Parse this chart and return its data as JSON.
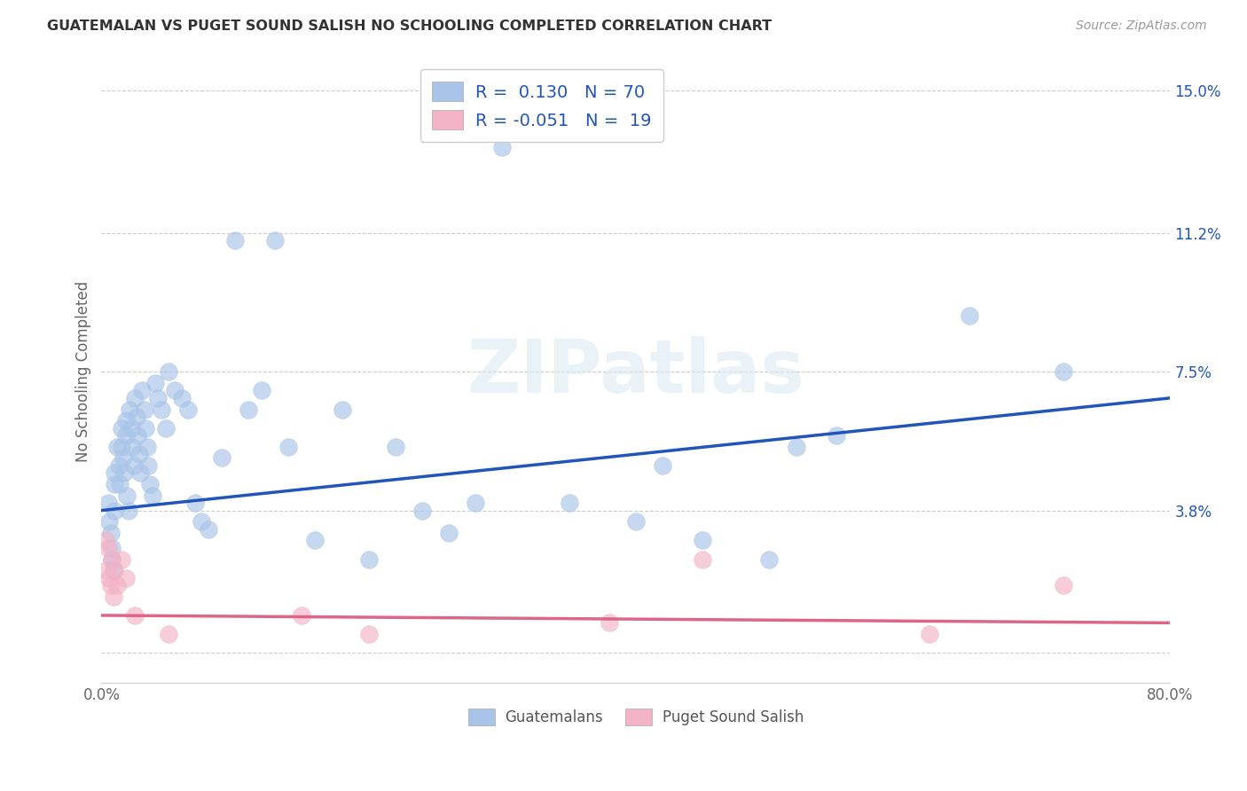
{
  "title": "GUATEMALAN VS PUGET SOUND SALISH NO SCHOOLING COMPLETED CORRELATION CHART",
  "source": "Source: ZipAtlas.com",
  "ylabel": "No Schooling Completed",
  "xlim": [
    0.0,
    0.8
  ],
  "ylim": [
    -0.008,
    0.158
  ],
  "yticks": [
    0.0,
    0.038,
    0.075,
    0.112,
    0.15
  ],
  "ytick_labels": [
    "",
    "3.8%",
    "7.5%",
    "11.2%",
    "15.0%"
  ],
  "xticks": [
    0.0,
    0.1,
    0.2,
    0.3,
    0.4,
    0.5,
    0.6,
    0.7,
    0.8
  ],
  "xtick_labels": [
    "0.0%",
    "",
    "",
    "",
    "",
    "",
    "",
    "",
    "80.0%"
  ],
  "guatemalan_color": "#a8c4e8",
  "puget_color": "#f2b3c6",
  "guatemalan_line_color": "#2255bb",
  "puget_line_color": "#dd6688",
  "legend_text_color": "#2255bb",
  "watermark": "ZIPatlas",
  "R_guatemalan": 0.13,
  "N_guatemalan": 70,
  "R_puget": -0.051,
  "N_puget": 19,
  "guatemalan_x": [
    0.005,
    0.006,
    0.007,
    0.008,
    0.008,
    0.009,
    0.01,
    0.01,
    0.01,
    0.012,
    0.013,
    0.014,
    0.015,
    0.015,
    0.016,
    0.017,
    0.018,
    0.018,
    0.019,
    0.02,
    0.021,
    0.022,
    0.023,
    0.024,
    0.025,
    0.026,
    0.027,
    0.028,
    0.029,
    0.03,
    0.032,
    0.033,
    0.034,
    0.035,
    0.036,
    0.038,
    0.04,
    0.042,
    0.045,
    0.048,
    0.05,
    0.055,
    0.06,
    0.065,
    0.07,
    0.075,
    0.08,
    0.09,
    0.1,
    0.11,
    0.12,
    0.13,
    0.14,
    0.16,
    0.18,
    0.2,
    0.22,
    0.24,
    0.26,
    0.28,
    0.3,
    0.35,
    0.4,
    0.42,
    0.45,
    0.5,
    0.52,
    0.55,
    0.65,
    0.72
  ],
  "guatemalan_y": [
    0.04,
    0.035,
    0.032,
    0.028,
    0.025,
    0.022,
    0.048,
    0.045,
    0.038,
    0.055,
    0.05,
    0.045,
    0.06,
    0.055,
    0.052,
    0.048,
    0.062,
    0.058,
    0.042,
    0.038,
    0.065,
    0.06,
    0.055,
    0.05,
    0.068,
    0.063,
    0.058,
    0.053,
    0.048,
    0.07,
    0.065,
    0.06,
    0.055,
    0.05,
    0.045,
    0.042,
    0.072,
    0.068,
    0.065,
    0.06,
    0.075,
    0.07,
    0.068,
    0.065,
    0.04,
    0.035,
    0.033,
    0.052,
    0.11,
    0.065,
    0.07,
    0.11,
    0.055,
    0.03,
    0.065,
    0.025,
    0.055,
    0.038,
    0.032,
    0.04,
    0.135,
    0.04,
    0.035,
    0.05,
    0.03,
    0.025,
    0.055,
    0.058,
    0.09,
    0.075
  ],
  "puget_x": [
    0.003,
    0.004,
    0.005,
    0.006,
    0.007,
    0.008,
    0.009,
    0.01,
    0.012,
    0.015,
    0.018,
    0.025,
    0.05,
    0.15,
    0.2,
    0.38,
    0.45,
    0.62,
    0.72
  ],
  "puget_y": [
    0.03,
    0.022,
    0.028,
    0.02,
    0.018,
    0.025,
    0.015,
    0.022,
    0.018,
    0.025,
    0.02,
    0.01,
    0.005,
    0.01,
    0.005,
    0.008,
    0.025,
    0.005,
    0.018
  ],
  "blue_line_x0": 0.0,
  "blue_line_y0": 0.038,
  "blue_line_x1": 0.8,
  "blue_line_y1": 0.068,
  "pink_line_x0": 0.0,
  "pink_line_y0": 0.01,
  "pink_line_x1": 0.8,
  "pink_line_y1": 0.008
}
